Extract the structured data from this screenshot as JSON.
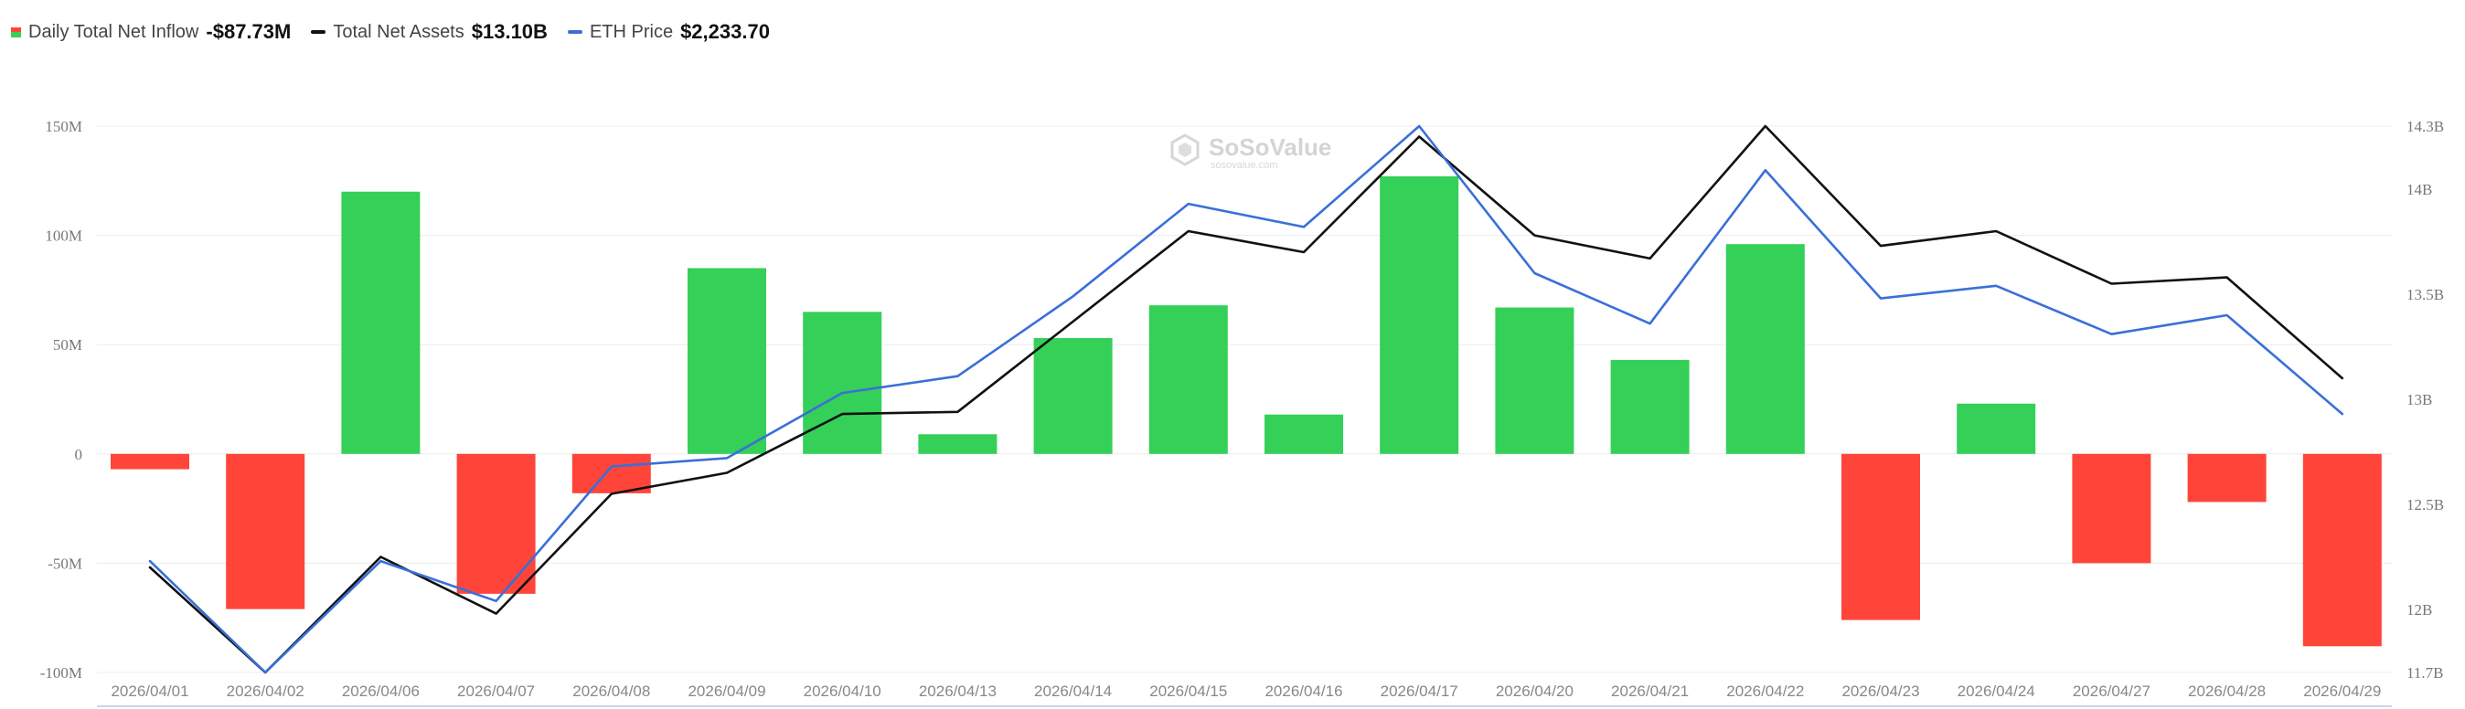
{
  "legend": {
    "items": [
      {
        "label": "Daily Total Net Inflow",
        "value": "-$87.73M"
      },
      {
        "label": "Total Net Assets",
        "value": "$13.10B"
      },
      {
        "label": "ETH Price",
        "value": "$2,233.70"
      }
    ]
  },
  "watermark": {
    "brand": "SoSoValue",
    "sub": "sosovalue.com"
  },
  "colors": {
    "positive": "#34d058",
    "negative": "#ff453a",
    "net_assets_line": "#111111",
    "eth_price_line": "#3a6fd8",
    "grid": "#ececec"
  },
  "chart_data": {
    "type": "bar+line",
    "categories": [
      "2026/04/01",
      "2026/04/02",
      "2026/04/06",
      "2026/04/07",
      "2026/04/08",
      "2026/04/09",
      "2026/04/10",
      "2026/04/13",
      "2026/04/14",
      "2026/04/15",
      "2026/04/16",
      "2026/04/17",
      "2026/04/20",
      "2026/04/21",
      "2026/04/22",
      "2026/04/23",
      "2026/04/24",
      "2026/04/27",
      "2026/04/28",
      "2026/04/29"
    ],
    "left_axis": {
      "min": -100,
      "max": 150,
      "unit": "M",
      "ticks": [
        "150M",
        "100M",
        "50M",
        "0",
        "-50M",
        "-100M"
      ],
      "tick_values": [
        150,
        100,
        50,
        0,
        -50,
        -100
      ]
    },
    "right_axis": {
      "min": 11.7,
      "max": 14.3,
      "unit": "B",
      "ticks": [
        "14.3B",
        "14B",
        "13.5B",
        "13B",
        "12.5B",
        "12B",
        "11.7B"
      ],
      "tick_values": [
        14.3,
        14,
        13.5,
        13,
        12.5,
        12,
        11.7
      ]
    },
    "series": [
      {
        "name": "Daily Total Net Inflow",
        "type": "bar",
        "axis": "left",
        "values": [
          -7,
          -71,
          120,
          -64,
          -18,
          85,
          65,
          9,
          53,
          68,
          18,
          127,
          67,
          43,
          96,
          -76,
          23,
          -50,
          -22,
          -88
        ]
      },
      {
        "name": "Total Net Assets",
        "type": "line",
        "axis": "right",
        "values": [
          12.2,
          11.7,
          12.25,
          11.98,
          12.55,
          12.65,
          12.93,
          12.94,
          13.37,
          13.8,
          13.7,
          14.25,
          13.78,
          13.67,
          14.3,
          13.73,
          13.8,
          13.55,
          13.58,
          13.1
        ]
      },
      {
        "name": "ETH Price",
        "type": "line",
        "axis": "right",
        "values": [
          12.23,
          11.7,
          12.23,
          12.04,
          12.68,
          12.72,
          13.03,
          13.11,
          13.49,
          13.93,
          13.82,
          14.3,
          13.6,
          13.36,
          14.09,
          13.48,
          13.54,
          13.31,
          13.4,
          12.93
        ]
      }
    ],
    "grid": true,
    "legend_position": "top-left"
  }
}
